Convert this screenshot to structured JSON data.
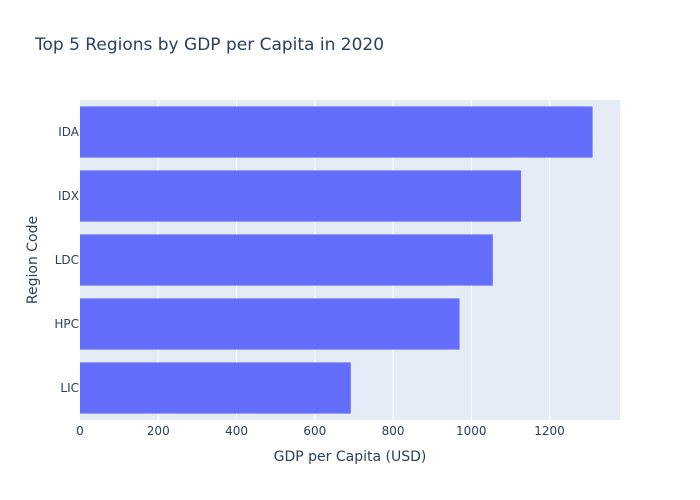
{
  "chart_data": {
    "type": "bar",
    "orientation": "horizontal",
    "title": "Top 5 Regions by GDP per Capita in 2020",
    "xlabel": "GDP per Capita (USD)",
    "ylabel": "Region Code",
    "categories": [
      "IDA",
      "IDX",
      "LDC",
      "HPC",
      "LIC"
    ],
    "values": [
      1310,
      1127,
      1055,
      970,
      692
    ],
    "xlim": [
      0,
      1380
    ],
    "xticks": [
      0,
      200,
      400,
      600,
      800,
      1000,
      1200
    ],
    "grid": true,
    "colors": {
      "bar": "#636efa",
      "plot_bg": "#e5ecf6",
      "text": "#2a3f5f",
      "grid": "#ffffff"
    }
  }
}
